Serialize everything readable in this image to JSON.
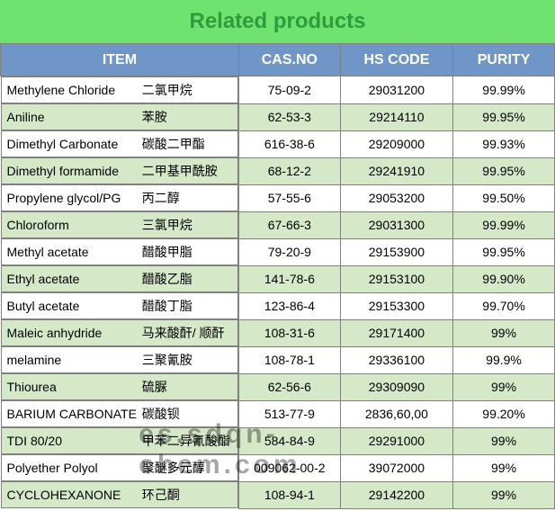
{
  "title": "Related products",
  "title_color": "#2e9b3d",
  "title_bg": "#70e270",
  "header_bg": "#6f96c7",
  "header_text_color": "#ffffff",
  "row_alt_bg_even": "#ffffff",
  "row_alt_bg_odd": "#d5e8c8",
  "border_color": "#808080",
  "columns": [
    "ITEM",
    "CAS.NO",
    "HS CODE",
    "PURITY"
  ],
  "rows": [
    {
      "en": "Methylene Chloride",
      "zh": "二氯甲烷",
      "cas": "75-09-2",
      "hs": "29031200",
      "purity": "99.99%"
    },
    {
      "en": "Aniline",
      "zh": "苯胺",
      "cas": "62-53-3",
      "hs": "29214110",
      "purity": "99.95%"
    },
    {
      "en": "Dimethyl Carbonate",
      "zh": "碳酸二甲酯",
      "cas": "616-38-6",
      "hs": "29209000",
      "purity": "99.93%"
    },
    {
      "en": "Dimethyl  formamide",
      "zh": "二甲基甲酰胺",
      "cas": "68-12-2",
      "hs": "29241910",
      "purity": "99.95%"
    },
    {
      "en": "Propylene glycol/PG",
      "zh": "丙二醇",
      "cas": "57-55-6",
      "hs": "29053200",
      "purity": "99.50%"
    },
    {
      "en": "Chloroform",
      "zh": "三氯甲烷",
      "cas": "67-66-3",
      "hs": "29031300",
      "purity": "99.99%"
    },
    {
      "en": "Methyl acetate",
      "zh": "醋酸甲脂",
      "cas": "79-20-9",
      "hs": "29153900",
      "purity": "99.95%"
    },
    {
      "en": "Ethyl   acetate",
      "zh": "醋酸乙脂",
      "cas": "141-78-6",
      "hs": "29153100",
      "purity": "99.90%"
    },
    {
      "en": "Butyl   acetate",
      "zh": "醋酸丁脂",
      "cas": "123-86-4",
      "hs": "29153300",
      "purity": "99.70%"
    },
    {
      "en": "Maleic anhydride",
      "zh": "马来酸酐/ 顺酐",
      "cas": "108-31-6",
      "hs": "29171400",
      "purity": "99%"
    },
    {
      "en": "melamine",
      "zh": "三聚氰胺",
      "cas": "108-78-1",
      "hs": "29336100",
      "purity": "99.9%"
    },
    {
      "en": "Thiourea",
      "zh": "硫脲",
      "cas": "62-56-6",
      "hs": "29309090",
      "purity": "99%"
    },
    {
      "en": "BARIUM CARBONATE",
      "zh": "碳酸钡",
      "cas": "513-77-9",
      "hs": "2836,60,00",
      "purity": "99.20%"
    },
    {
      "en": "TDI 80/20",
      "zh": "甲苯二异氰酸酯",
      "cas": "584-84-9",
      "hs": "29291000",
      "purity": "99%"
    },
    {
      "en": "Polyether Polyol",
      "zh": "聚醚多元醇",
      "cas": "009062-00-2",
      "hs": "39072000",
      "purity": "99%"
    },
    {
      "en": "CYCLOHEXANONE",
      "zh": "环己酮",
      "cas": "108-94-1",
      "hs": "29142200",
      "purity": "99%"
    }
  ],
  "watermark": "es.sdqn-chem.com"
}
